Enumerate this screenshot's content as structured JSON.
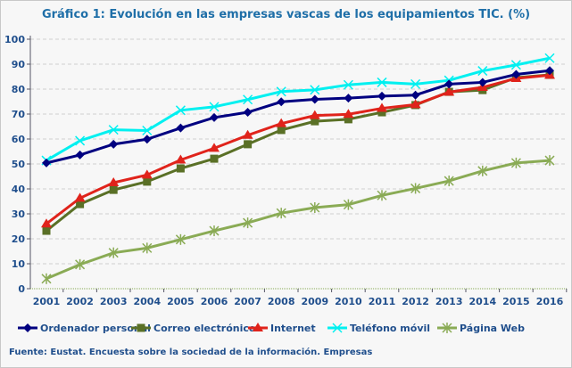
{
  "title": "Gráfico 1: Evolución en las empresas vascas de los equipamientos TIC. (%)",
  "source": "Fuente: Eustat. Encuesta sobre la sociedad de la información. Empresas",
  "chart_data": {
    "type": "line",
    "title": "Gráfico 1: Evolución en las empresas vascas de los equipamientos TIC. (%)",
    "xlabel": "",
    "ylabel": "",
    "ylim": [
      0,
      100
    ],
    "yticks": [
      0,
      10,
      20,
      30,
      40,
      50,
      60,
      70,
      80,
      90,
      100
    ],
    "grid": true,
    "legend": "bottom",
    "categories": [
      "2001",
      "2002",
      "2003",
      "2004",
      "2005",
      "2006",
      "2007",
      "2008",
      "2009",
      "2010",
      "2011",
      "2012",
      "2013",
      "2014",
      "2015",
      "2016"
    ],
    "series": [
      {
        "name": "Ordenador personal",
        "color": "#000080",
        "marker": "diamond",
        "values": [
          50.4,
          53.6,
          57.9,
          59.9,
          64.4,
          68.6,
          70.7,
          74.9,
          75.9,
          76.4,
          77.2,
          77.6,
          82.0,
          82.7,
          85.9,
          87.4
        ]
      },
      {
        "name": "Correo electrónico",
        "color": "#5a7026",
        "marker": "square",
        "values": [
          23.2,
          33.9,
          39.6,
          42.9,
          48.2,
          52.1,
          57.9,
          63.6,
          67.1,
          67.9,
          70.7,
          73.6,
          78.9,
          79.6,
          84.6,
          85.7
        ]
      },
      {
        "name": "Internet",
        "color": "#e0231b",
        "marker": "triangle",
        "values": [
          26.0,
          36.3,
          42.5,
          45.6,
          51.6,
          56.3,
          61.5,
          66.2,
          69.4,
          69.9,
          72.3,
          73.8,
          78.8,
          80.7,
          84.3,
          85.6
        ]
      },
      {
        "name": "Teléfono móvil",
        "color": "#00f0f0",
        "marker": "x",
        "values": [
          51.4,
          59.3,
          63.7,
          63.4,
          71.5,
          72.9,
          75.8,
          79.0,
          79.7,
          81.7,
          82.7,
          82.0,
          83.5,
          87.3,
          89.7,
          92.4
        ]
      },
      {
        "name": "Página Web",
        "color": "#8aab55",
        "marker": "star",
        "values": [
          4.0,
          9.7,
          14.4,
          16.3,
          19.7,
          23.2,
          26.4,
          30.3,
          32.5,
          33.7,
          37.4,
          40.2,
          43.2,
          47.2,
          50.4,
          51.4
        ]
      }
    ]
  }
}
